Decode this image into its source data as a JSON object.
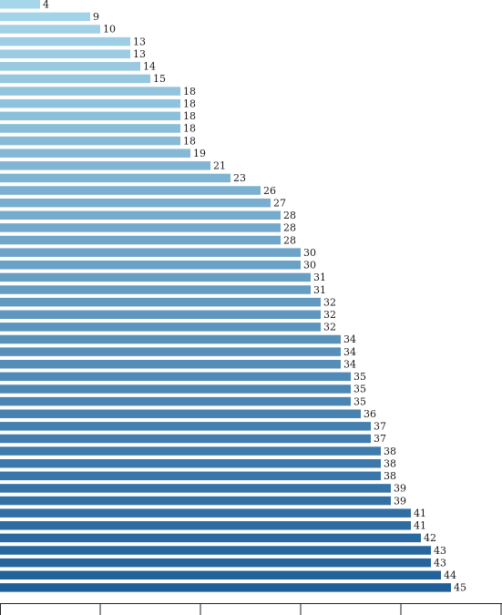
{
  "chart_data": {
    "type": "bar",
    "orientation": "horizontal",
    "values": [
      4,
      9,
      10,
      13,
      13,
      14,
      15,
      18,
      18,
      18,
      18,
      18,
      19,
      21,
      23,
      26,
      27,
      28,
      28,
      28,
      30,
      30,
      31,
      31,
      32,
      32,
      32,
      34,
      34,
      34,
      35,
      35,
      35,
      36,
      37,
      37,
      38,
      38,
      38,
      39,
      39,
      41,
      41,
      42,
      43,
      43,
      44,
      45
    ],
    "xlim": [
      0,
      50
    ],
    "x_ticks": [
      0,
      10,
      20,
      30,
      40,
      50
    ],
    "grid": false,
    "data_labels": true,
    "color_scale": [
      "#a6d6ea",
      "#1f5f99"
    ]
  }
}
